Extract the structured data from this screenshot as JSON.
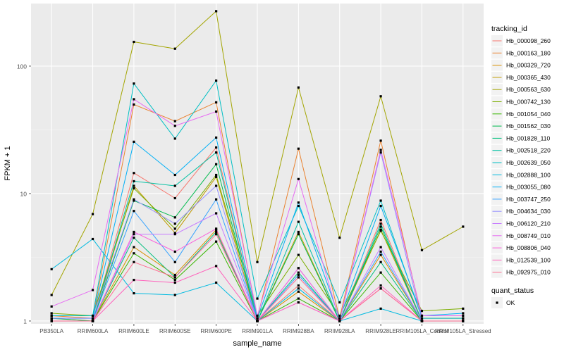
{
  "chart_data": {
    "type": "line",
    "xlabel": "sample_name",
    "ylabel": "FPKM + 1",
    "y_scale": "log10",
    "ylim": [
      0.95,
      310
    ],
    "y_ticks": [
      1,
      10,
      100
    ],
    "y_tick_labels": [
      "1",
      "10",
      "100"
    ],
    "grid": true,
    "legend_position": "right",
    "categories": [
      "PB350LA",
      "RRIM600LA",
      "RRIM600LE",
      "RRIM600SE",
      "RRIM600PE",
      "RRIM901LA",
      "RRIM928BA",
      "RRIM928LA",
      "RRIM928LE",
      "RRIM105LA_Control",
      "RRIM105LA_Stressed"
    ],
    "category_labels": [
      "PB350LA",
      "RRIM600LA",
      "RRIM600LE",
      "RRIM600SE",
      "RRIM600PE",
      "RRIM901LA",
      "RRIM928BA",
      "RRIM928LA",
      "RRIM928LE",
      "RRIM105LA_Control",
      "RRIM105LA_Stressed"
    ],
    "legend_title": "tracking_id",
    "shape_legend_title": "quant_status",
    "shape_legend_entries": [
      "OK"
    ],
    "series": [
      {
        "name": "Hb_000098_260",
        "color": "#F8766D",
        "values": [
          1.05,
          1.0,
          14.5,
          9.2,
          23,
          1.0,
          1.9,
          1.0,
          6.2,
          1.0,
          1.0
        ]
      },
      {
        "name": "Hb_000163_180",
        "color": "#EA8331",
        "values": [
          1.1,
          1.05,
          50,
          37,
          52,
          1.05,
          22.5,
          1.05,
          26,
          1.05,
          1.05
        ]
      },
      {
        "name": "Hb_000329_720",
        "color": "#D89000",
        "values": [
          1.0,
          1.0,
          3.8,
          2.3,
          5.2,
          1.0,
          1.7,
          1.0,
          3.3,
          1.0,
          1.0
        ]
      },
      {
        "name": "Hb_000365_430",
        "color": "#C09B00",
        "values": [
          1.0,
          1.0,
          11.5,
          4.9,
          13.5,
          1.0,
          5.0,
          1.0,
          5.2,
          1.0,
          1.0
        ]
      },
      {
        "name": "Hb_000563_630",
        "color": "#A3A500",
        "values": [
          1.6,
          6.9,
          155,
          137,
          270,
          2.9,
          68,
          4.5,
          58,
          3.6,
          5.5
        ]
      },
      {
        "name": "Hb_000742_130",
        "color": "#7CAE00",
        "values": [
          1.15,
          1.1,
          11,
          5.3,
          14,
          1.1,
          3.3,
          1.1,
          5.1,
          1.2,
          1.25
        ]
      },
      {
        "name": "Hb_001054_040",
        "color": "#39B600",
        "values": [
          1.0,
          1.0,
          3.4,
          2.1,
          4.2,
          1.0,
          1.5,
          1.0,
          2.4,
          1.0,
          1.0
        ]
      },
      {
        "name": "Hb_001562_030",
        "color": "#00BB4E",
        "values": [
          1.05,
          1.0,
          8.8,
          6.5,
          17,
          1.0,
          4.8,
          1.0,
          5.5,
          1.0,
          1.0
        ]
      },
      {
        "name": "Hb_001828_110",
        "color": "#00BF7D",
        "values": [
          1.0,
          1.0,
          4.5,
          2.2,
          5.0,
          1.0,
          2.4,
          1.0,
          2.9,
          1.0,
          1.0
        ]
      },
      {
        "name": "Hb_002518_220",
        "color": "#00C1A3",
        "values": [
          1.0,
          1.0,
          12.5,
          11.5,
          21,
          1.0,
          6.0,
          1.0,
          5.8,
          1.0,
          1.0
        ]
      },
      {
        "name": "Hb_002639_050",
        "color": "#00BFC4",
        "values": [
          1.1,
          1.1,
          73,
          27,
          77,
          1.5,
          8.0,
          1.4,
          8.8,
          1.05,
          1.05
        ]
      },
      {
        "name": "Hb_002888_100",
        "color": "#00BAE0",
        "values": [
          2.55,
          4.4,
          1.65,
          1.6,
          2.0,
          1.0,
          1.8,
          1.0,
          1.25,
          1.0,
          1.0
        ]
      },
      {
        "name": "Hb_003055_080",
        "color": "#00B0F6",
        "values": [
          1.05,
          1.05,
          25.5,
          14,
          27.5,
          1.05,
          8.5,
          1.05,
          8.0,
          1.1,
          1.15
        ]
      },
      {
        "name": "Hb_003747_250",
        "color": "#35A2FF",
        "values": [
          1.0,
          1.0,
          7.3,
          2.9,
          9.0,
          1.0,
          2.3,
          1.0,
          3.5,
          1.0,
          1.0
        ]
      },
      {
        "name": "Hb_004634_030",
        "color": "#9590FF",
        "values": [
          1.05,
          1.05,
          9.0,
          5.8,
          11.5,
          1.0,
          2.6,
          1.0,
          21,
          1.0,
          1.0
        ]
      },
      {
        "name": "Hb_006120_210",
        "color": "#C77CFF",
        "values": [
          1.0,
          1.0,
          4.8,
          4.8,
          7.0,
          1.0,
          1.4,
          1.0,
          3.8,
          1.0,
          1.0
        ]
      },
      {
        "name": "Hb_008749_010",
        "color": "#E76BF3",
        "values": [
          1.3,
          1.75,
          55,
          34,
          44,
          1.1,
          13,
          1.0,
          22,
          1.1,
          1.1
        ]
      },
      {
        "name": "Hb_008806_040",
        "color": "#FA62DB",
        "values": [
          1.0,
          1.0,
          5.0,
          3.5,
          5.3,
          1.0,
          2.6,
          1.0,
          1.8,
          1.0,
          1.0
        ]
      },
      {
        "name": "Hb_012539_100",
        "color": "#FF62BC",
        "values": [
          1.0,
          1.0,
          2.1,
          2.0,
          2.7,
          1.0,
          1.4,
          1.0,
          1.9,
          1.0,
          1.0
        ]
      },
      {
        "name": "Hb_092975_010",
        "color": "#FF6C91",
        "values": [
          1.0,
          1.0,
          2.9,
          2.2,
          4.8,
          1.0,
          2.2,
          1.0,
          1.8,
          1.0,
          1.0
        ]
      }
    ]
  }
}
